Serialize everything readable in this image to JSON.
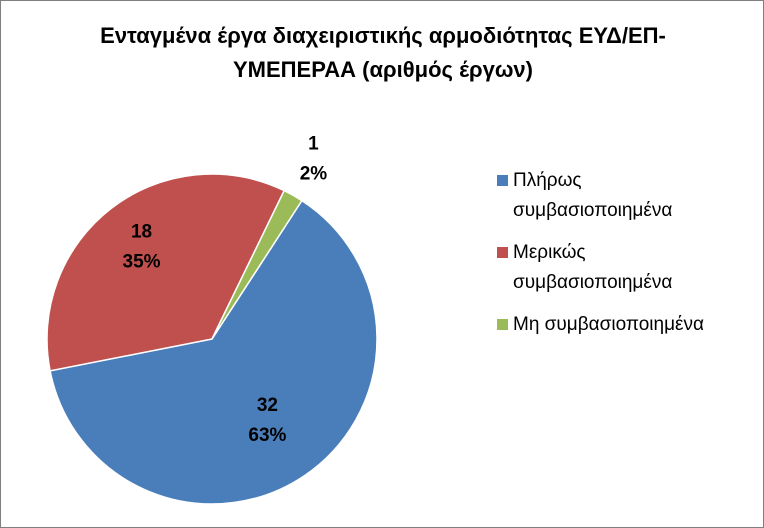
{
  "chart_data": {
    "type": "pie",
    "title": "Ενταγμένα έργα διαχειριστικής αρμοδιότητας ΕΥΔ/ΕΠ-ΥΜΕΠΕΡΑΑ (αριθμός έργων)",
    "categories": [
      "Πλήρως συμβασιοποιημένα",
      "Μερικώς συμβασιοποιημένα",
      "Μη συμβασιοποιημένα"
    ],
    "values": [
      32,
      18,
      1
    ],
    "percent_labels": [
      "63%",
      "35%",
      "2%"
    ],
    "colors": [
      "#4a7ebb",
      "#c0504d",
      "#9bbb59"
    ],
    "legend": "right"
  }
}
